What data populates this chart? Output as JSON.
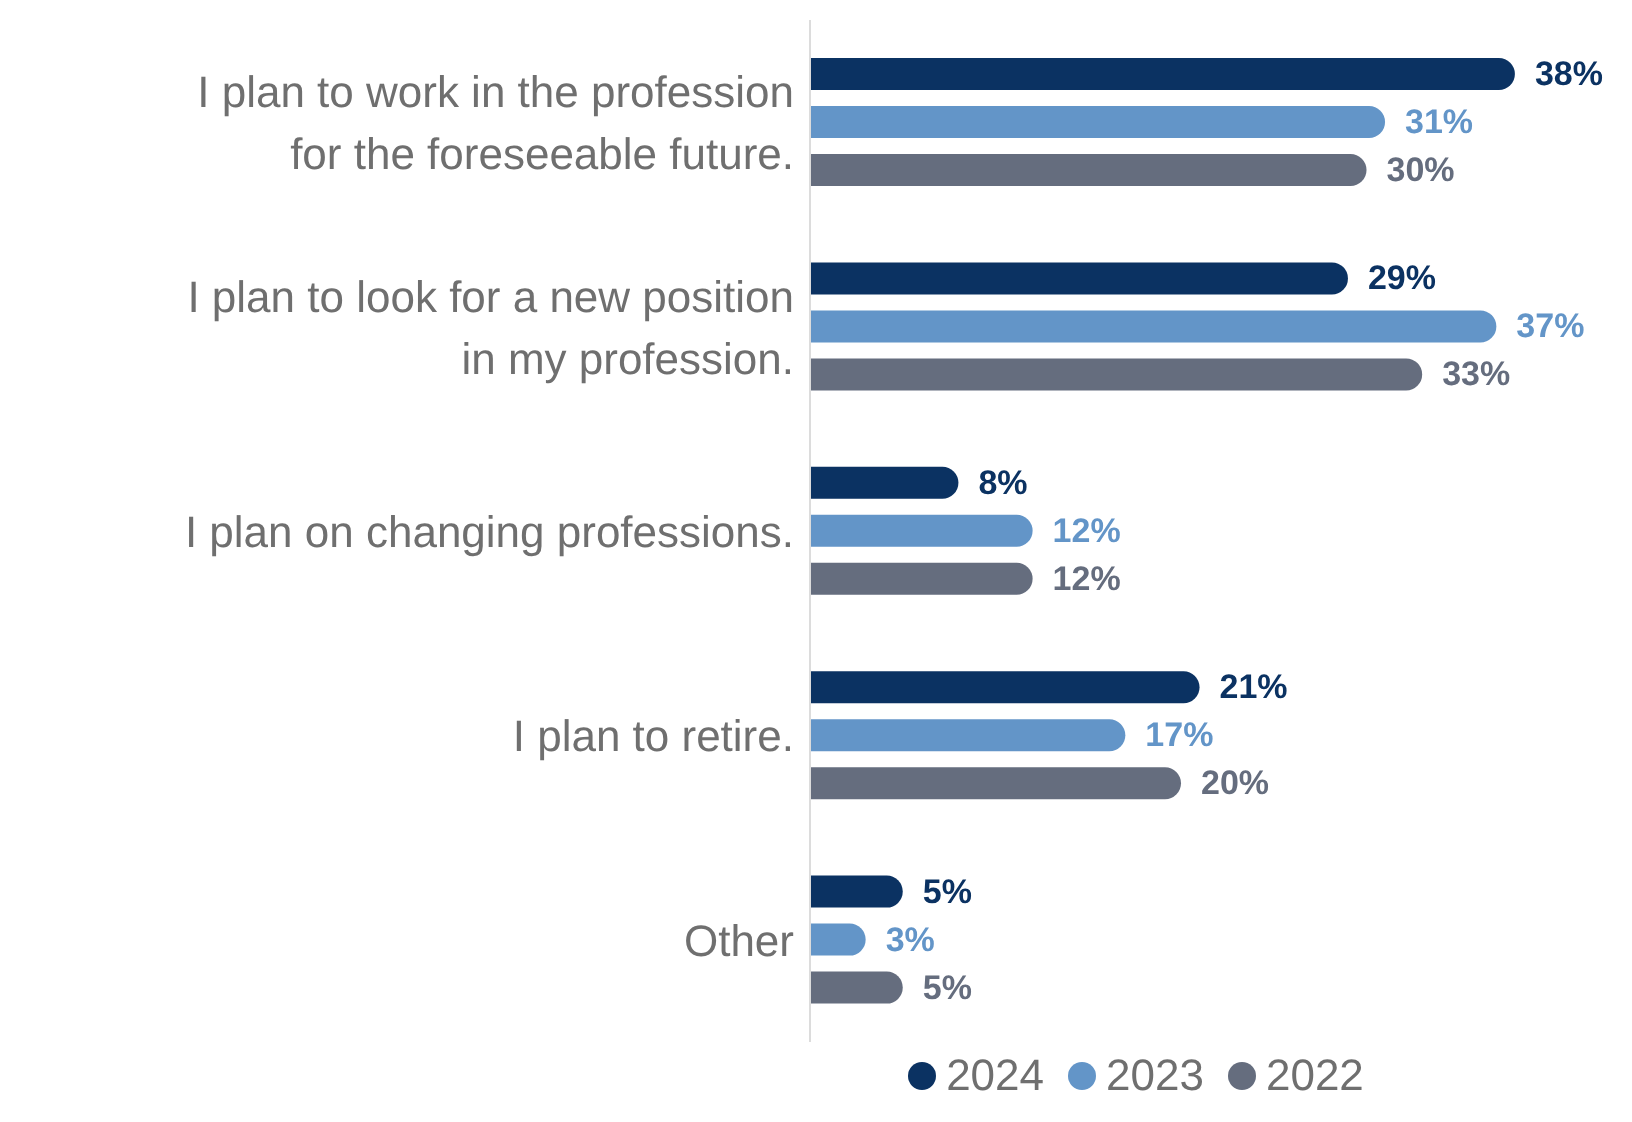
{
  "chart_data": {
    "type": "bar",
    "orientation": "horizontal",
    "categories": [
      "I plan to work in the profession for the foreseeable future.",
      "I plan to look for a new position in my profession.",
      "I plan on changing professions.",
      "I plan to retire.",
      "Other"
    ],
    "series": [
      {
        "name": "2024",
        "color": "#0b3262",
        "values": [
          38,
          29,
          8,
          21,
          5
        ],
        "value_labels": [
          "38%",
          "29%",
          "8%",
          "21%",
          "5%"
        ]
      },
      {
        "name": "2023",
        "color": "#6395c8",
        "values": [
          31,
          37,
          12,
          17,
          3
        ],
        "value_labels": [
          "31%",
          "37%",
          "12%",
          "17%",
          "3%"
        ]
      },
      {
        "name": "2022",
        "color": "#656d7e",
        "values": [
          30,
          33,
          12,
          20,
          5
        ],
        "value_labels": [
          "30%",
          "33%",
          "12%",
          "20%",
          "5%"
        ]
      }
    ],
    "tick_labels": "y",
    "legend": "bottom"
  }
}
